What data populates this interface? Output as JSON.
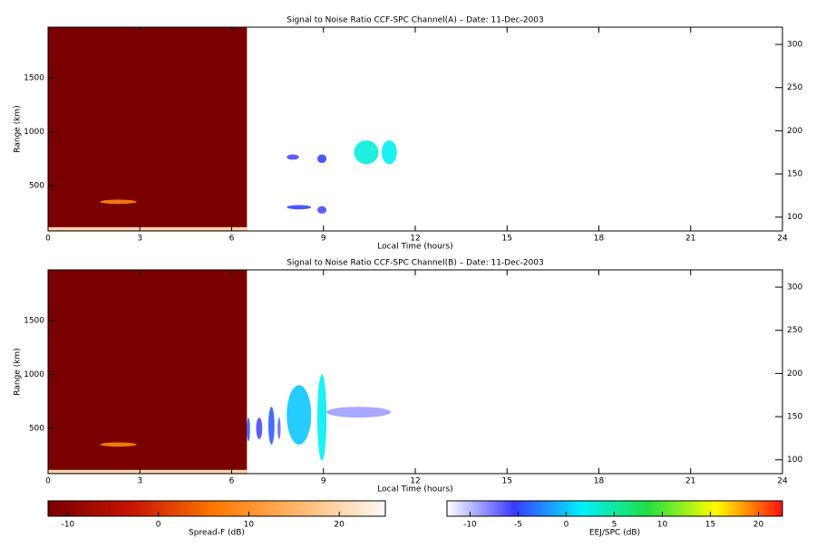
{
  "chart_data": [
    {
      "type": "heatmap",
      "title": "Signal to Noise Ratio CCF-SPC Channel(A) – Date: 11-Dec-2003",
      "xlabel": "Local Time (hours)",
      "ylabel": "Range (km)",
      "xlim": [
        0,
        24
      ],
      "xticks": [
        0,
        3,
        6,
        9,
        12,
        15,
        18,
        21,
        24
      ],
      "ylim": [
        80,
        1970
      ],
      "yticks": [
        500,
        1000,
        1500
      ],
      "y2lim": [
        84,
        320
      ],
      "y2ticks": [
        100,
        150,
        200,
        250,
        300
      ],
      "regions": [
        {
          "x": [
            0,
            6.5
          ],
          "y": [
            80,
            1970
          ],
          "value": -12,
          "colorbar": 0,
          "shape": "rect"
        },
        {
          "x": [
            0,
            6.5
          ],
          "y": [
            85,
            115
          ],
          "value": 20,
          "colorbar": 0,
          "shape": "rect"
        },
        {
          "x": [
            1.7,
            2.9
          ],
          "y": [
            330,
            370
          ],
          "value": 8,
          "colorbar": 0,
          "shape": "ellipse"
        },
        {
          "x": [
            7.8,
            8.2
          ],
          "y": [
            740,
            790
          ],
          "value": -6,
          "colorbar": 1,
          "shape": "ellipse"
        },
        {
          "x": [
            8.8,
            9.1
          ],
          "y": [
            710,
            790
          ],
          "value": -5,
          "colorbar": 1,
          "shape": "ellipse"
        },
        {
          "x": [
            10,
            10.8
          ],
          "y": [
            700,
            920
          ],
          "value": 3,
          "colorbar": 1,
          "shape": "ellipse"
        },
        {
          "x": [
            10.9,
            11.4
          ],
          "y": [
            700,
            920
          ],
          "value": 2,
          "colorbar": 1,
          "shape": "ellipse"
        },
        {
          "x": [
            7.8,
            8.6
          ],
          "y": [
            280,
            320
          ],
          "value": -5,
          "colorbar": 1,
          "shape": "ellipse"
        },
        {
          "x": [
            8.8,
            9.1
          ],
          "y": [
            240,
            310
          ],
          "value": -6,
          "colorbar": 1,
          "shape": "ellipse"
        }
      ]
    },
    {
      "type": "heatmap",
      "title": "Signal to Noise Ratio CCF-SPC Channel(B) – Date: 11-Dec-2003",
      "xlabel": "Local Time (hours)",
      "ylabel": "Range (km)",
      "xlim": [
        0,
        24
      ],
      "xticks": [
        0,
        3,
        6,
        9,
        12,
        15,
        18,
        21,
        24
      ],
      "ylim": [
        80,
        1970
      ],
      "yticks": [
        500,
        1000,
        1500
      ],
      "y2lim": [
        84,
        320
      ],
      "y2ticks": [
        100,
        150,
        200,
        250,
        300
      ],
      "regions": [
        {
          "x": [
            0,
            6.5
          ],
          "y": [
            80,
            1970
          ],
          "value": -12,
          "colorbar": 0,
          "shape": "rect"
        },
        {
          "x": [
            0,
            6.5
          ],
          "y": [
            85,
            115
          ],
          "value": 20,
          "colorbar": 0,
          "shape": "rect"
        },
        {
          "x": [
            1.7,
            2.9
          ],
          "y": [
            330,
            370
          ],
          "value": 8,
          "colorbar": 0,
          "shape": "ellipse"
        },
        {
          "x": [
            9.1,
            11.2
          ],
          "y": [
            600,
            700
          ],
          "value": -9,
          "colorbar": 1,
          "shape": "ellipse"
        },
        {
          "x": [
            6.5,
            6.6
          ],
          "y": [
            380,
            600
          ],
          "value": -4,
          "colorbar": 1,
          "shape": "ellipse"
        },
        {
          "x": [
            6.8,
            7.0
          ],
          "y": [
            400,
            600
          ],
          "value": -6,
          "colorbar": 1,
          "shape": "ellipse"
        },
        {
          "x": [
            7.2,
            7.4
          ],
          "y": [
            350,
            700
          ],
          "value": -4,
          "colorbar": 1,
          "shape": "ellipse"
        },
        {
          "x": [
            7.5,
            7.6
          ],
          "y": [
            400,
            600
          ],
          "value": -7,
          "colorbar": 1,
          "shape": "ellipse"
        },
        {
          "x": [
            7.8,
            8.6
          ],
          "y": [
            350,
            900
          ],
          "value": 0,
          "colorbar": 1,
          "shape": "ellipse"
        },
        {
          "x": [
            8.8,
            9.1
          ],
          "y": [
            200,
            1000
          ],
          "value": 2,
          "colorbar": 1,
          "shape": "ellipse"
        }
      ]
    }
  ],
  "colorbars": [
    {
      "label": "Spread-F (dB)",
      "lim": [
        -12.2,
        25.1
      ],
      "ticks": [
        -10,
        0,
        10,
        20
      ],
      "colors": [
        "#780000",
        "#c81400",
        "#ff7a00",
        "#ffb870",
        "#fffaf5"
      ]
    },
    {
      "label": "EEJ/SPC (dB)",
      "lim": [
        -12.4,
        22.5
      ],
      "ticks": [
        -10,
        -5,
        0,
        5,
        10,
        15,
        20
      ],
      "colors": [
        "#ffffff",
        "#3a3aff",
        "#00f0ff",
        "#20e040",
        "#ffff00",
        "#ff1010"
      ]
    }
  ]
}
